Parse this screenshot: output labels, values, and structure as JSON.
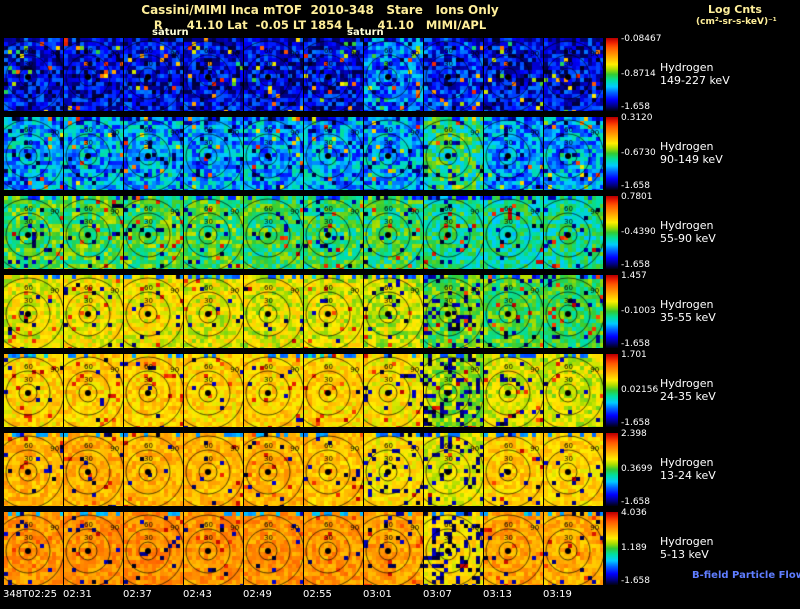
{
  "header": {
    "title": "Cassini/MIMI Inca mTOF  2010-348   Stare   Ions Only",
    "subtitle": "R      41.10 Lat  -0.05 LT 1854 L      41.10   MIMI/APL",
    "log_units_line1": "Log Cnts",
    "log_units_line2": "(cm²-sr-s-keV)⁻¹",
    "saturn_label_1": "saturn",
    "saturn_label_2": "saturn"
  },
  "footer": {
    "bfield_label": "B-field Particle Flow"
  },
  "colors": {
    "background": "#000000",
    "title_text": "#ffef9a",
    "axis_text": "#ffffff",
    "bfield_text": "#5f7dff"
  },
  "chart_data": {
    "type": "heatmap",
    "description": "Grid of Cassini MIMI/INCA ion sky-map panels: 7 energy bands (rows) x 10 time steps (columns); rainbow log-count colormap, contour rings at 30/60/90 degrees with Saturn marked by a black dot in each panel.",
    "x_tick_labels": [
      "348T02:25",
      "02:31",
      "02:37",
      "02:43",
      "02:49",
      "02:55",
      "03:01",
      "03:07",
      "03:13",
      "03:19"
    ],
    "contour_labels": [
      "30",
      "60",
      "90"
    ],
    "colormap_stops": [
      [
        0.0,
        "#00001a"
      ],
      [
        0.06,
        "#000080"
      ],
      [
        0.15,
        "#0000ff"
      ],
      [
        0.25,
        "#0066ff"
      ],
      [
        0.33,
        "#00ccff"
      ],
      [
        0.42,
        "#00e0a0"
      ],
      [
        0.5,
        "#33cc33"
      ],
      [
        0.57,
        "#aadd00"
      ],
      [
        0.64,
        "#ffee00"
      ],
      [
        0.72,
        "#ffbb00"
      ],
      [
        0.8,
        "#ff8800"
      ],
      [
        0.88,
        "#ff5500"
      ],
      [
        0.94,
        "#ee2200"
      ],
      [
        1.0,
        "#bb0000"
      ]
    ],
    "rows": [
      {
        "species": "Hydrogen",
        "energy": "149-227 keV",
        "cbar_max": "-0.08467",
        "cbar_mid": "-0.8714",
        "cbar_min": "-1.658",
        "render": {
          "base": 0.14,
          "variance": 0.13,
          "spike": 0.05,
          "column_bias": [
            0,
            0,
            0,
            0,
            0,
            0,
            0.12,
            0.04,
            0,
            0
          ],
          "dropout": [
            0.06,
            0.06,
            0.06,
            0.06,
            0.06,
            0.06,
            0.06,
            0.06,
            0.06,
            0.06
          ]
        }
      },
      {
        "species": "Hydrogen",
        "energy": "90-149 keV",
        "cbar_max": "0.3120",
        "cbar_mid": "-0.6730",
        "cbar_min": "-1.658",
        "render": {
          "base": 0.3,
          "variance": 0.14,
          "spike": 0.04,
          "column_bias": [
            0,
            0.01,
            0,
            0,
            0,
            0,
            0,
            0.14,
            -0.02,
            0
          ],
          "dropout": [
            0.05,
            0.05,
            0.05,
            0.05,
            0.05,
            0.05,
            0.05,
            0.05,
            0.05,
            0.05
          ]
        }
      },
      {
        "species": "Hydrogen",
        "energy": "55-90 keV",
        "cbar_max": "0.7801",
        "cbar_mid": "-0.4390",
        "cbar_min": "-1.658",
        "render": {
          "base": 0.47,
          "variance": 0.11,
          "spike": 0.03,
          "column_bias": [
            0.02,
            0.03,
            0.02,
            0.02,
            0,
            0,
            0,
            -0.03,
            -0.05,
            -0.04
          ],
          "dropout": [
            0.04,
            0.04,
            0.04,
            0.04,
            0.04,
            0.04,
            0.04,
            0.05,
            0.05,
            0.04
          ]
        }
      },
      {
        "species": "Hydrogen",
        "energy": "35-55 keV",
        "cbar_max": "1.457",
        "cbar_mid": "-0.1003",
        "cbar_min": "-1.658",
        "render": {
          "base": 0.6,
          "variance": 0.09,
          "spike": 0.03,
          "column_bias": [
            0.03,
            0.04,
            0.04,
            0.03,
            0.02,
            0.02,
            0,
            -0.08,
            -0.1,
            -0.12
          ],
          "dropout": [
            0.03,
            0.03,
            0.03,
            0.03,
            0.03,
            0.03,
            0.05,
            0.18,
            0.06,
            0.06
          ]
        }
      },
      {
        "species": "Hydrogen",
        "energy": "24-35 keV",
        "cbar_max": "1.701",
        "cbar_mid": "0.02156",
        "cbar_min": "-1.658",
        "render": {
          "base": 0.66,
          "variance": 0.08,
          "spike": 0.03,
          "column_bias": [
            0.02,
            0.03,
            0.03,
            0.02,
            0.02,
            0.02,
            0,
            -0.1,
            -0.04,
            -0.05
          ],
          "dropout": [
            0.03,
            0.03,
            0.03,
            0.03,
            0.03,
            0.03,
            0.06,
            0.22,
            0.05,
            0.05
          ]
        }
      },
      {
        "species": "Hydrogen",
        "energy": "13-24 keV",
        "cbar_max": "2.398",
        "cbar_mid": "0.3699",
        "cbar_min": "-1.658",
        "render": {
          "base": 0.71,
          "variance": 0.07,
          "spike": 0.02,
          "column_bias": [
            0.02,
            0.03,
            0.02,
            0.02,
            0.02,
            0,
            -0.05,
            -0.09,
            -0.02,
            -0.03
          ],
          "dropout": [
            0.03,
            0.03,
            0.03,
            0.03,
            0.03,
            0.04,
            0.12,
            0.15,
            0.04,
            0.04
          ]
        }
      },
      {
        "species": "Hydrogen",
        "energy": "5-13 keV",
        "cbar_max": "4.036",
        "cbar_mid": "1.189",
        "cbar_min": "-1.658",
        "render": {
          "base": 0.76,
          "variance": 0.07,
          "spike": 0.02,
          "column_bias": [
            0.02,
            0.03,
            0.03,
            0.02,
            0.02,
            0.02,
            0,
            -0.1,
            0,
            -0.02
          ],
          "dropout": [
            0.03,
            0.03,
            0.03,
            0.03,
            0.03,
            0.03,
            0.05,
            0.25,
            0.04,
            0.05
          ]
        }
      }
    ]
  }
}
